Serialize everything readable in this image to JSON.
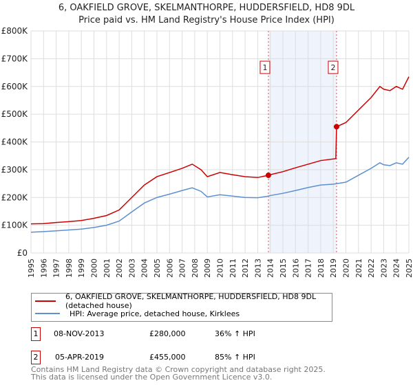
{
  "title": "6, OAKFIELD GROVE, SKELMANTHORPE, HUDDERSFIELD, HD8 9DL",
  "subtitle": "Price paid vs. HM Land Registry's House Price Index (HPI)",
  "chart_data": {
    "type": "line",
    "ylim": [
      0,
      800000
    ],
    "xlim": [
      1995,
      2025
    ],
    "ytick_labels": [
      "£0",
      "£100K",
      "£200K",
      "£300K",
      "£400K",
      "£500K",
      "£600K",
      "£700K",
      "£800K"
    ],
    "ytick_values": [
      0,
      100000,
      200000,
      300000,
      400000,
      500000,
      600000,
      700000,
      800000
    ],
    "xtick_labels": [
      "1995",
      "1996",
      "1997",
      "1998",
      "1999",
      "2000",
      "2001",
      "2002",
      "2003",
      "2004",
      "2005",
      "2006",
      "2007",
      "2008",
      "2009",
      "2010",
      "2011",
      "2012",
      "2013",
      "2014",
      "2015",
      "2016",
      "2017",
      "2018",
      "2019",
      "2020",
      "2021",
      "2022",
      "2023",
      "2024",
      "2025"
    ],
    "grid": true,
    "series": [
      {
        "name": "6, OAKFIELD GROVE, SKELMANTHORPE, HUDDERSFIELD, HD8 9DL (detached house)",
        "color": "#cc0000",
        "x": [
          1995,
          1996,
          1997,
          1998,
          1999,
          2000,
          2001,
          2002,
          2003,
          2004,
          2005,
          2006,
          2007,
          2007.8,
          2008.5,
          2009,
          2010,
          2011,
          2012,
          2013,
          2013.85,
          2014,
          2015,
          2016,
          2017,
          2018,
          2019.2,
          2019.26,
          2020,
          2021,
          2022,
          2022.7,
          2023,
          2023.5,
          2024,
          2024.5,
          2025
        ],
        "y": [
          105000,
          106000,
          110000,
          113000,
          117000,
          125000,
          135000,
          155000,
          200000,
          245000,
          275000,
          290000,
          305000,
          320000,
          300000,
          275000,
          290000,
          282000,
          275000,
          272000,
          280000,
          282000,
          293000,
          307000,
          320000,
          333000,
          340000,
          455000,
          470000,
          515000,
          560000,
          600000,
          590000,
          585000,
          600000,
          590000,
          635000
        ]
      },
      {
        "name": "HPI: Average price, detached house, Kirklees",
        "color": "#5b8fd0",
        "x": [
          1995,
          1996,
          1997,
          1998,
          1999,
          2000,
          2001,
          2002,
          2003,
          2004,
          2005,
          2006,
          2007,
          2007.8,
          2008.5,
          2009,
          2010,
          2011,
          2012,
          2013,
          2013.85,
          2014,
          2015,
          2016,
          2017,
          2018,
          2019,
          2020,
          2021,
          2022,
          2022.7,
          2023,
          2023.5,
          2024,
          2024.5,
          2025
        ],
        "y": [
          75000,
          77000,
          80000,
          83000,
          86000,
          92000,
          100000,
          115000,
          148000,
          180000,
          200000,
          212000,
          225000,
          235000,
          222000,
          202000,
          210000,
          205000,
          200000,
          199000,
          205000,
          207000,
          215000,
          225000,
          236000,
          245000,
          248000,
          255000,
          280000,
          305000,
          325000,
          318000,
          315000,
          325000,
          320000,
          345000
        ]
      }
    ],
    "annotations": [
      {
        "label": "1",
        "x": 2013.85,
        "y": 280000
      },
      {
        "label": "2",
        "x": 2019.26,
        "y": 455000
      }
    ],
    "shaded_range": [
      2013.85,
      2019.26
    ]
  },
  "legend": {
    "items": [
      "6, OAKFIELD GROVE, SKELMANTHORPE, HUDDERSFIELD, HD8 9DL (detached house)",
      "HPI: Average price, detached house, Kirklees"
    ]
  },
  "transactions": [
    {
      "num": "1",
      "date": "08-NOV-2013",
      "price": "£280,000",
      "hpi": "36% ↑ HPI"
    },
    {
      "num": "2",
      "date": "05-APR-2019",
      "price": "£455,000",
      "hpi": "85% ↑ HPI"
    }
  ],
  "footer": [
    "Contains HM Land Registry data © Crown copyright and database right 2025.",
    "This data is licensed under the Open Government Licence v3.0."
  ]
}
